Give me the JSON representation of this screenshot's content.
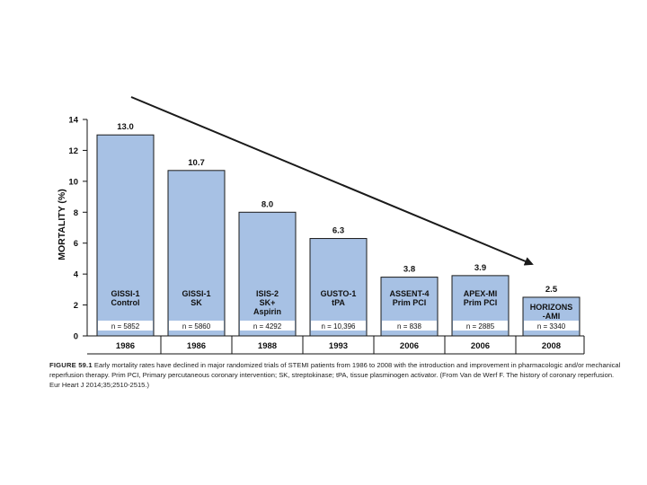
{
  "chart_data": {
    "type": "bar",
    "ylabel": "MORTALITY (%)",
    "ylim": [
      0,
      14
    ],
    "yticks": [
      "0",
      "2",
      "4",
      "6",
      "8",
      "10",
      "12",
      "14"
    ],
    "grid": false,
    "colors": {
      "bar": "#a7c1e4",
      "bar_stroke": "#1a1a1a",
      "arrow": "#1a1a1a",
      "text": "#111111"
    },
    "bars": [
      {
        "year": "1986",
        "value": 13.0,
        "value_label": "13.0",
        "name_lines": [
          "GISSI-1",
          "Control"
        ],
        "n": "n = 5852"
      },
      {
        "year": "1986",
        "value": 10.7,
        "value_label": "10.7",
        "name_lines": [
          "GISSI-1",
          "SK"
        ],
        "n": "n = 5860"
      },
      {
        "year": "1988",
        "value": 8.0,
        "value_label": "8.0",
        "name_lines": [
          "ISIS-2",
          "SK+",
          "Aspirin"
        ],
        "n": "n = 4292"
      },
      {
        "year": "1993",
        "value": 6.3,
        "value_label": "6.3",
        "name_lines": [
          "GUSTO-1",
          "tPA"
        ],
        "n": "n = 10,396"
      },
      {
        "year": "2006",
        "value": 3.8,
        "value_label": "3.8",
        "name_lines": [
          "ASSENT-4",
          "Prim PCI"
        ],
        "n": "n = 838"
      },
      {
        "year": "2006",
        "value": 3.9,
        "value_label": "3.9",
        "name_lines": [
          "APEX-MI",
          "Prim PCI"
        ],
        "n": "n = 2885"
      },
      {
        "year": "2008",
        "value": 2.5,
        "value_label": "2.5",
        "name_lines": [
          "HORIZONS",
          "-AMI"
        ],
        "n": "n = 3340"
      }
    ]
  },
  "caption": {
    "figure_label": "FIGURE 59.1",
    "text": "Early mortality rates have declined in major randomized trials of STEMI patients from 1986 to 2008 with the introduction and improvement in pharmacologic and/or mechanical reperfusion therapy. Prim PCI, Primary percutaneous coronary intervention; SK, streptokinase; tPA, tissue plasminogen activator. (From Van de Werf F. The history of coronary reperfusion. Eur Heart J 2014;35;2510-2515.)"
  }
}
